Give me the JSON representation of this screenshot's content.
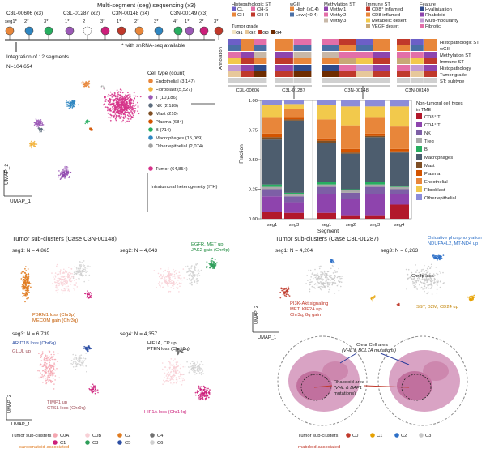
{
  "top_left": {
    "header": "Multi-segment (seg) sequencing (x3)",
    "cases": [
      {
        "name": "C3L-00606 (x3)",
        "segs": [
          "seg1*",
          "2*",
          "3*"
        ]
      },
      {
        "name": "C3L-01287 (x2)",
        "segs": [
          "1*",
          "2",
          "3*"
        ]
      },
      {
        "name": "C3N-00148 (x4)",
        "segs": [
          "1*",
          "2*",
          "3*",
          "4*"
        ]
      },
      {
        "name": "C3N-00149 (x3)",
        "segs": [
          "1*",
          "2*",
          "3*"
        ]
      }
    ],
    "snrna_note": "* with snRNA-seq available",
    "integration_label": "Integration of 12 segments",
    "n_label": "N=104,654",
    "umap_x": "UMAP_1",
    "umap_y": "UMAP_2"
  },
  "cell_type_legend": {
    "title": "Cell type (count)",
    "items": [
      {
        "label": "Endothelial (3,147)",
        "color": "#e8863a"
      },
      {
        "label": "Fibroblast (5,527)",
        "color": "#f2b33c"
      },
      {
        "label": "T (10,186)",
        "color": "#9b59b6"
      },
      {
        "label": "NK (2,189)",
        "color": "#5d6d7e"
      },
      {
        "label": "Mast (210)",
        "color": "#7f4f24"
      },
      {
        "label": "Plasma (684)",
        "color": "#d35400"
      },
      {
        "label": "B (714)",
        "color": "#27ae60"
      },
      {
        "label": "Macrophages (15,069)",
        "color": "#2e86c1"
      },
      {
        "label": "Other epithelial (2,074)",
        "color": "#a0a0a0"
      }
    ],
    "tumor": {
      "label": "Tumor (64,854)",
      "color": "#d6338a"
    },
    "ith_label": "Intratumoral heterogeneity (ITH)"
  },
  "heatmap": {
    "legend_groups": [
      {
        "title": "Histopathologic ST",
        "items": [
          {
            "label": "CL",
            "color": "#6c5fc7"
          },
          {
            "label": "CH-S",
            "color": "#e36fa8"
          },
          {
            "label": "CH",
            "color": "#e8863a"
          },
          {
            "label": "CH-R",
            "color": "#c0392b"
          }
        ]
      },
      {
        "title": "wGII",
        "items": [
          {
            "label": "High (≥0.4)",
            "color": "#e8863a"
          },
          {
            "label": "Low (<0.4)",
            "color": "#4a6fa5"
          }
        ]
      },
      {
        "title": "Methylation ST",
        "items": [
          {
            "label": "Methyl1",
            "color": "#8e44ad"
          },
          {
            "label": "Methyl2",
            "color": "#e36fa8"
          },
          {
            "label": "Methyl3",
            "color": "#c8b8a8"
          }
        ]
      },
      {
        "title": "Immune ST",
        "items": [
          {
            "label": "CD8⁺ inflamed",
            "color": "#c0392b"
          },
          {
            "label": "CD8 inflamed",
            "color": "#e8863a"
          },
          {
            "label": "Metabolic desert",
            "color": "#f2c94c"
          },
          {
            "label": "VEGF desert",
            "color": "#c8a877"
          }
        ]
      },
      {
        "title": "Feature",
        "items": [
          {
            "label": "Hyalinization",
            "color": "#2e4a8b"
          },
          {
            "label": "Rhabdoid",
            "color": "#8e44ad"
          },
          {
            "label": "Multi-modularity",
            "color": "#c39bd3"
          },
          {
            "label": "Fibrotic",
            "color": "#e36fa8"
          }
        ]
      }
    ],
    "tumor_grade": {
      "title": "Tumor grade",
      "items": [
        {
          "label": "G1",
          "color": "#f3e6c4"
        },
        {
          "label": "G2",
          "color": "#e7c89b"
        },
        {
          "label": "G3",
          "color": "#c0392b"
        },
        {
          "label": "G4",
          "color": "#6e2c00"
        }
      ]
    },
    "row_labels": [
      "Histopathologic ST",
      "wGII",
      "Methylation ST",
      "Immune ST",
      "Histopathology",
      "Tumor grade",
      "ST: subtype"
    ],
    "annotation_label": "Annotation",
    "cases": [
      "C3L-00606",
      "C3L-01287",
      "C3N-00148",
      "C3N-00149"
    ]
  },
  "chart_data": {
    "type": "bar",
    "title": "",
    "xlabel": "Segment",
    "ylabel": "Fraction",
    "ylim": [
      0,
      1
    ],
    "yticks": [
      "0.00",
      "0.25",
      "0.50",
      "0.75",
      "1.00"
    ],
    "categories": [
      "seg1",
      "seg3",
      "seg1",
      "seg2",
      "seg3",
      "seg4"
    ],
    "legend_title": "Non-tumoral cell types in TME",
    "series": [
      {
        "name": "CD8⁺ T",
        "color": "#b2182b",
        "values": [
          0.06,
          0.05,
          0.05,
          0.03,
          0.03,
          0.12
        ]
      },
      {
        "name": "CD4⁺ T",
        "color": "#8e44ad",
        "values": [
          0.13,
          0.09,
          0.16,
          0.14,
          0.18,
          0.09
        ]
      },
      {
        "name": "NK",
        "color": "#7d5fa6",
        "values": [
          0.06,
          0.05,
          0.06,
          0.05,
          0.06,
          0.04
        ]
      },
      {
        "name": "Treg",
        "color": "#a9a9a9",
        "values": [
          0.02,
          0.02,
          0.02,
          0.02,
          0.02,
          0.02
        ]
      },
      {
        "name": "B",
        "color": "#27ae60",
        "values": [
          0.02,
          0.01,
          0.02,
          0.01,
          0.02,
          0.01
        ]
      },
      {
        "name": "Macrophages",
        "color": "#4d5d6e",
        "values": [
          0.38,
          0.61,
          0.33,
          0.3,
          0.38,
          0.28
        ]
      },
      {
        "name": "Mast",
        "color": "#7f4f24",
        "values": [
          0.02,
          0.01,
          0.02,
          0.01,
          0.01,
          0.01
        ]
      },
      {
        "name": "Plasma",
        "color": "#d35400",
        "values": [
          0.03,
          0.02,
          0.02,
          0.03,
          0.02,
          0.02
        ]
      },
      {
        "name": "Endothelial",
        "color": "#e8863a",
        "values": [
          0.14,
          0.07,
          0.16,
          0.2,
          0.14,
          0.19
        ]
      },
      {
        "name": "Fibroblast",
        "color": "#f2c94c",
        "values": [
          0.1,
          0.04,
          0.12,
          0.16,
          0.09,
          0.17
        ]
      },
      {
        "name": "Other epithelial",
        "color": "#8c8cd9",
        "values": [
          0.04,
          0.03,
          0.04,
          0.05,
          0.05,
          0.05
        ]
      }
    ]
  },
  "bottom_left": {
    "title": "Tumor sub-clusters (Case C3N-00148)",
    "panels": [
      {
        "label": "seg1: N = 4,865",
        "annotations": [
          "PBRM1 loss (Chr3p)",
          "MECOM gain (Chr3q)"
        ]
      },
      {
        "label": "seg2: N = 4,043",
        "annotations": [
          "EGFR, MET up",
          "JAK2 gain (Chr9p)"
        ]
      },
      {
        "label": "seg3: N = 6,739",
        "annotations": [
          "ARID1B loss (Chr6q)",
          "GLUL up",
          "TIMP1 up",
          "CTSL loss (Chr9q)"
        ]
      },
      {
        "label": "seg4: N = 4,357",
        "annotations": [
          "HIF1A, CP up",
          "PTEN loss (Chr10q)",
          "HIF1A loss (Chr14q)"
        ]
      }
    ],
    "legend_title": "Tumor sub-clusters",
    "legend": [
      {
        "label": "C0A",
        "color": "#f4a6b0"
      },
      {
        "label": "C0B",
        "color": "#f8d0d6"
      },
      {
        "label": "C1",
        "color": "#cc1f7a"
      },
      {
        "label": "C2",
        "color": "#e07b20"
      },
      {
        "label": "C3",
        "color": "#2e9e59"
      },
      {
        "label": "C4",
        "color": "#707070"
      },
      {
        "label": "C5",
        "color": "#2c4ea3"
      },
      {
        "label": "C6",
        "color": "#d0d0d0"
      }
    ],
    "footnote": "sarcomatoid-associated"
  },
  "bottom_right": {
    "title": "Tumor sub-clusters (Case C3L-01287)",
    "panels": [
      {
        "label": "seg1: N = 4,204",
        "annotations": [
          "PI3K-Akt signaling",
          "MET, KIF2A up",
          "Chr3q, 8q gain"
        ]
      },
      {
        "label": "seg3: N = 6,263",
        "annotations": [
          "Oxidative phosphorylation",
          "NDUFA4L2, MT-ND4 up",
          "Chr3p loss",
          "SST, B2M, CD24 up"
        ]
      }
    ],
    "histology": {
      "clear_cell": "Clear Cell area",
      "clear_cell_sub": "(VHL & BCL7A mutations)",
      "rhabdoid": "Rhabdoid area",
      "rhabdoid_sub1": "(VHL & BAP1",
      "rhabdoid_sub2": "mutations)"
    },
    "legend_title": "Tumor sub-clusters",
    "legend": [
      {
        "label": "C0",
        "color": "#c0392b"
      },
      {
        "label": "C1",
        "color": "#e6a100"
      },
      {
        "label": "C2",
        "color": "#2c6fc7"
      },
      {
        "label": "C3",
        "color": "#c8c8c8"
      }
    ],
    "footnote": "rhabdoid-associated"
  }
}
